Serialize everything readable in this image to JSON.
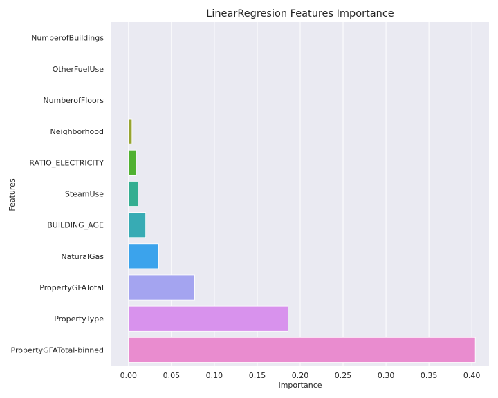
{
  "chart_data": {
    "type": "bar",
    "orientation": "horizontal",
    "title": "LinearRegresion Features Importance",
    "xlabel": "Importance",
    "ylabel": "Features",
    "xlim": [
      -0.02,
      0.42
    ],
    "xticks": [
      0.0,
      0.05,
      0.1,
      0.15,
      0.2,
      0.25,
      0.3,
      0.35,
      0.4
    ],
    "xtick_labels": [
      "0.00",
      "0.05",
      "0.10",
      "0.15",
      "0.20",
      "0.25",
      "0.30",
      "0.35",
      "0.40"
    ],
    "grid": true,
    "categories": [
      "NumberofBuildings",
      "OtherFuelUse",
      "NumberofFloors",
      "Neighborhood",
      "RATIO_ELECTRICITY",
      "SteamUse",
      "BUILDING_AGE",
      "NaturalGas",
      "PropertyGFATotal",
      "PropertyType",
      "PropertyGFATotal-binned"
    ],
    "values": [
      0.0,
      0.0,
      0.0,
      0.004,
      0.009,
      0.011,
      0.02,
      0.035,
      0.077,
      0.186,
      0.404
    ],
    "colors": [
      "#f77189",
      "#e0842f",
      "#bb9832",
      "#97a431",
      "#50b131",
      "#34ae91",
      "#37abb4",
      "#3ba3ec",
      "#a4a4f0",
      "#d892ed",
      "#e98ccf"
    ]
  }
}
